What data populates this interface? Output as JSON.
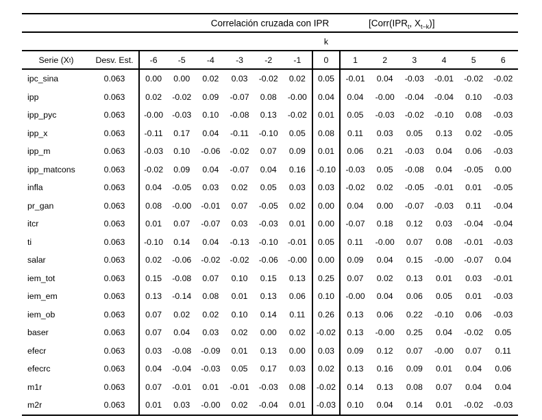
{
  "table": {
    "title": "Correlación cruzada con IPR",
    "formula": {
      "p1": "[Corr(IPR",
      "sub1": "t",
      "p2": ", X",
      "sub2": "t−k",
      "p3": ")]"
    },
    "k_label": "k",
    "serie_header": {
      "p1": "Serie (X",
      "sub": "t",
      "p2": ")"
    },
    "sd_header": "Desv. Est.",
    "k_headers": [
      "-6",
      "-5",
      "-4",
      "-3",
      "-2",
      "-1",
      "0",
      "1",
      "2",
      "3",
      "4",
      "5",
      "6"
    ],
    "rows": [
      {
        "name": "ipc_sina",
        "sd": "0.063",
        "values": [
          "0.00",
          "0.00",
          "0.02",
          "0.03",
          "-0.02",
          "0.02",
          "0.05",
          "-0.01",
          "0.04",
          "-0.03",
          "-0.01",
          "-0.02",
          "-0.02"
        ]
      },
      {
        "name": "ipp",
        "sd": "0.063",
        "values": [
          "0.02",
          "-0.02",
          "0.09",
          "-0.07",
          "0.08",
          "-0.00",
          "0.04",
          "0.04",
          "-0.00",
          "-0.04",
          "-0.04",
          "0.10",
          "-0.03"
        ]
      },
      {
        "name": "ipp_pyc",
        "sd": "0.063",
        "values": [
          "-0.00",
          "-0.03",
          "0.10",
          "-0.08",
          "0.13",
          "-0.02",
          "0.01",
          "0.05",
          "-0.03",
          "-0.02",
          "-0.10",
          "0.08",
          "-0.03"
        ]
      },
      {
        "name": "ipp_x",
        "sd": "0.063",
        "values": [
          "-0.11",
          "0.17",
          "0.04",
          "-0.11",
          "-0.10",
          "0.05",
          "0.08",
          "0.11",
          "0.03",
          "0.05",
          "0.13",
          "0.02",
          "-0.05"
        ]
      },
      {
        "name": "ipp_m",
        "sd": "0.063",
        "values": [
          "-0.03",
          "0.10",
          "-0.06",
          "-0.02",
          "0.07",
          "0.09",
          "0.01",
          "0.06",
          "0.21",
          "-0.03",
          "0.04",
          "0.06",
          "-0.03"
        ]
      },
      {
        "name": "ipp_matcons",
        "sd": "0.063",
        "values": [
          "-0.02",
          "0.09",
          "0.04",
          "-0.07",
          "0.04",
          "0.16",
          "-0.10",
          "-0.03",
          "0.05",
          "-0.08",
          "0.04",
          "-0.05",
          "0.00"
        ]
      },
      {
        "name": "infla",
        "sd": "0.063",
        "values": [
          "0.04",
          "-0.05",
          "0.03",
          "0.02",
          "0.05",
          "0.03",
          "0.03",
          "-0.02",
          "0.02",
          "-0.05",
          "-0.01",
          "0.01",
          "-0.05"
        ]
      },
      {
        "name": "pr_gan",
        "sd": "0.063",
        "values": [
          "0.08",
          "-0.00",
          "-0.01",
          "0.07",
          "-0.05",
          "0.02",
          "0.00",
          "0.04",
          "0.00",
          "-0.07",
          "-0.03",
          "0.11",
          "-0.04"
        ]
      },
      {
        "name": "itcr",
        "sd": "0.063",
        "values": [
          "0.01",
          "0.07",
          "-0.07",
          "0.03",
          "-0.03",
          "0.01",
          "0.00",
          "-0.07",
          "0.18",
          "0.12",
          "0.03",
          "-0.04",
          "-0.04"
        ]
      },
      {
        "name": "ti",
        "sd": "0.063",
        "values": [
          "-0.10",
          "0.14",
          "0.04",
          "-0.13",
          "-0.10",
          "-0.01",
          "0.05",
          "0.11",
          "-0.00",
          "0.07",
          "0.08",
          "-0.01",
          "-0.03"
        ]
      },
      {
        "name": "salar",
        "sd": "0.063",
        "values": [
          "0.02",
          "-0.06",
          "-0.02",
          "-0.02",
          "-0.06",
          "-0.00",
          "0.00",
          "0.09",
          "0.04",
          "0.15",
          "-0.00",
          "-0.07",
          "0.04"
        ]
      },
      {
        "name": "iem_tot",
        "sd": "0.063",
        "values": [
          "0.15",
          "-0.08",
          "0.07",
          "0.10",
          "0.15",
          "0.13",
          "0.25",
          "0.07",
          "0.02",
          "0.13",
          "0.01",
          "0.03",
          "-0.01"
        ]
      },
      {
        "name": "iem_em",
        "sd": "0.063",
        "values": [
          "0.13",
          "-0.14",
          "0.08",
          "0.01",
          "0.13",
          "0.06",
          "0.10",
          "-0.00",
          "0.04",
          "0.06",
          "0.05",
          "0.01",
          "-0.03"
        ]
      },
      {
        "name": "iem_ob",
        "sd": "0.063",
        "values": [
          "0.07",
          "0.02",
          "0.02",
          "0.10",
          "0.14",
          "0.11",
          "0.26",
          "0.13",
          "0.06",
          "0.22",
          "-0.10",
          "0.06",
          "-0.03"
        ]
      },
      {
        "name": "baser",
        "sd": "0.063",
        "values": [
          "0.07",
          "0.04",
          "0.03",
          "0.02",
          "0.00",
          "0.02",
          "-0.02",
          "0.13",
          "-0.00",
          "0.25",
          "0.04",
          "-0.02",
          "0.05"
        ]
      },
      {
        "name": "efecr",
        "sd": "0.063",
        "values": [
          "0.03",
          "-0.08",
          "-0.09",
          "0.01",
          "0.13",
          "0.00",
          "0.03",
          "0.09",
          "0.12",
          "0.07",
          "-0.00",
          "0.07",
          "0.11"
        ]
      },
      {
        "name": "efecrc",
        "sd": "0.063",
        "values": [
          "0.04",
          "-0.04",
          "-0.03",
          "0.05",
          "0.17",
          "0.03",
          "0.02",
          "0.13",
          "0.16",
          "0.09",
          "0.01",
          "0.04",
          "0.06"
        ]
      },
      {
        "name": "m1r",
        "sd": "0.063",
        "values": [
          "0.07",
          "-0.01",
          "0.01",
          "-0.01",
          "-0.03",
          "0.08",
          "-0.02",
          "0.14",
          "0.13",
          "0.08",
          "0.07",
          "0.04",
          "0.04"
        ]
      },
      {
        "name": "m2r",
        "sd": "0.063",
        "values": [
          "0.01",
          "0.03",
          "-0.00",
          "0.02",
          "-0.04",
          "0.01",
          "-0.03",
          "0.10",
          "0.04",
          "0.14",
          "0.01",
          "-0.02",
          "-0.03"
        ]
      }
    ]
  }
}
